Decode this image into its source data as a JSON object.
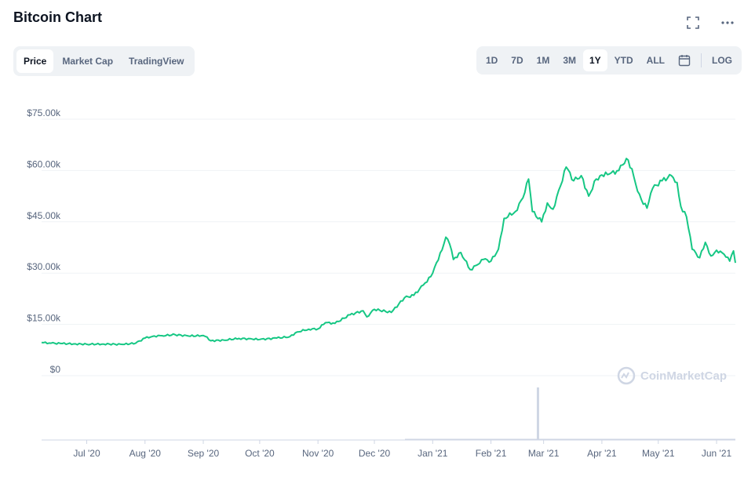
{
  "header": {
    "title": "Bitcoin Chart",
    "fullscreen_icon": "expand-icon",
    "more_icon": "ellipsis-icon"
  },
  "tabs": [
    {
      "label": "Price",
      "active": true
    },
    {
      "label": "Market Cap",
      "active": false
    },
    {
      "label": "TradingView",
      "active": false
    }
  ],
  "ranges": [
    {
      "label": "1D",
      "active": false
    },
    {
      "label": "7D",
      "active": false
    },
    {
      "label": "1M",
      "active": false
    },
    {
      "label": "3M",
      "active": false
    },
    {
      "label": "1Y",
      "active": true
    },
    {
      "label": "YTD",
      "active": false
    },
    {
      "label": "ALL",
      "active": false
    }
  ],
  "calendar_icon": "calendar-icon",
  "log_label": "LOG",
  "watermark": "CoinMarketCap",
  "colors": {
    "line": "#16c784",
    "grid": "#eff2f5",
    "volume": "#cfd6e4",
    "axis_text": "#58667e"
  },
  "chart_data": {
    "type": "line",
    "title": "Bitcoin Chart",
    "ylim": [
      0,
      75000
    ],
    "yticks": [
      0,
      15000,
      30000,
      45000,
      60000,
      75000
    ],
    "ytick_labels": [
      "$0",
      "$15.00k",
      "$30.00k",
      "$45.00k",
      "$60.00k",
      "$75.00k"
    ],
    "xlim": [
      "2020-06-07",
      "2021-06-11"
    ],
    "xticks": [
      "2020-07-01",
      "2020-08-01",
      "2020-09-01",
      "2020-10-01",
      "2020-11-01",
      "2020-12-01",
      "2021-01-01",
      "2021-02-01",
      "2021-03-01",
      "2021-04-01",
      "2021-05-01",
      "2021-06-01"
    ],
    "xtick_labels": [
      "Jul '20",
      "Aug '20",
      "Sep '20",
      "Oct '20",
      "Nov '20",
      "Dec '20",
      "Jan '21",
      "Feb '21",
      "Mar '21",
      "Apr '21",
      "May '21",
      "Jun '21"
    ],
    "grid": true,
    "series": [
      {
        "points": [
          [
            "2020-06-07",
            9700
          ],
          [
            "2020-06-12",
            9500
          ],
          [
            "2020-06-18",
            9400
          ],
          [
            "2020-06-24",
            9300
          ],
          [
            "2020-07-01",
            9200
          ],
          [
            "2020-07-10",
            9250
          ],
          [
            "2020-07-20",
            9150
          ],
          [
            "2020-07-27",
            9500
          ],
          [
            "2020-08-01",
            11000
          ],
          [
            "2020-08-05",
            11500
          ],
          [
            "2020-08-10",
            11700
          ],
          [
            "2020-08-17",
            12000
          ],
          [
            "2020-08-24",
            11600
          ],
          [
            "2020-08-31",
            11700
          ],
          [
            "2020-09-02",
            11500
          ],
          [
            "2020-09-05",
            10200
          ],
          [
            "2020-09-12",
            10400
          ],
          [
            "2020-09-20",
            10900
          ],
          [
            "2020-09-27",
            10700
          ],
          [
            "2020-10-01",
            10600
          ],
          [
            "2020-10-10",
            11000
          ],
          [
            "2020-10-17",
            11400
          ],
          [
            "2020-10-21",
            12800
          ],
          [
            "2020-10-27",
            13600
          ],
          [
            "2020-11-01",
            13700
          ],
          [
            "2020-11-05",
            15500
          ],
          [
            "2020-11-10",
            15300
          ],
          [
            "2020-11-18",
            17800
          ],
          [
            "2020-11-25",
            19000
          ],
          [
            "2020-11-27",
            17200
          ],
          [
            "2020-12-01",
            19400
          ],
          [
            "2020-12-10",
            18500
          ],
          [
            "2020-12-17",
            22800
          ],
          [
            "2020-12-22",
            23500
          ],
          [
            "2020-12-27",
            26500
          ],
          [
            "2020-12-31",
            29000
          ],
          [
            "2021-01-03",
            33000
          ],
          [
            "2021-01-06",
            36800
          ],
          [
            "2021-01-08",
            40500
          ],
          [
            "2021-01-10",
            38500
          ],
          [
            "2021-01-12",
            34000
          ],
          [
            "2021-01-16",
            36000
          ],
          [
            "2021-01-21",
            31000
          ],
          [
            "2021-01-25",
            32500
          ],
          [
            "2021-01-28",
            34000
          ],
          [
            "2021-02-01",
            33500
          ],
          [
            "2021-02-05",
            37000
          ],
          [
            "2021-02-08",
            46000
          ],
          [
            "2021-02-14",
            48000
          ],
          [
            "2021-02-18",
            52000
          ],
          [
            "2021-02-21",
            57500
          ],
          [
            "2021-02-23",
            48000
          ],
          [
            "2021-02-28",
            45000
          ],
          [
            "2021-03-03",
            50500
          ],
          [
            "2021-03-06",
            48700
          ],
          [
            "2021-03-10",
            55500
          ],
          [
            "2021-03-13",
            61000
          ],
          [
            "2021-03-17",
            57000
          ],
          [
            "2021-03-21",
            58500
          ],
          [
            "2021-03-25",
            52500
          ],
          [
            "2021-03-29",
            57500
          ],
          [
            "2021-04-01",
            58700
          ],
          [
            "2021-04-05",
            59000
          ],
          [
            "2021-04-10",
            60000
          ],
          [
            "2021-04-14",
            63500
          ],
          [
            "2021-04-17",
            60500
          ],
          [
            "2021-04-19",
            56000
          ],
          [
            "2021-04-22",
            51500
          ],
          [
            "2021-04-25",
            49000
          ],
          [
            "2021-04-28",
            54800
          ],
          [
            "2021-05-03",
            57000
          ],
          [
            "2021-05-08",
            58500
          ],
          [
            "2021-05-11",
            56500
          ],
          [
            "2021-05-13",
            49500
          ],
          [
            "2021-05-16",
            46500
          ],
          [
            "2021-05-19",
            37000
          ],
          [
            "2021-05-23",
            34500
          ],
          [
            "2021-05-26",
            39000
          ],
          [
            "2021-05-29",
            35000
          ],
          [
            "2021-06-01",
            36700
          ],
          [
            "2021-06-05",
            35500
          ],
          [
            "2021-06-08",
            33500
          ],
          [
            "2021-06-10",
            36500
          ],
          [
            "2021-06-11",
            33000
          ]
        ]
      }
    ],
    "volume_spike": {
      "date": "2021-02-26"
    }
  }
}
